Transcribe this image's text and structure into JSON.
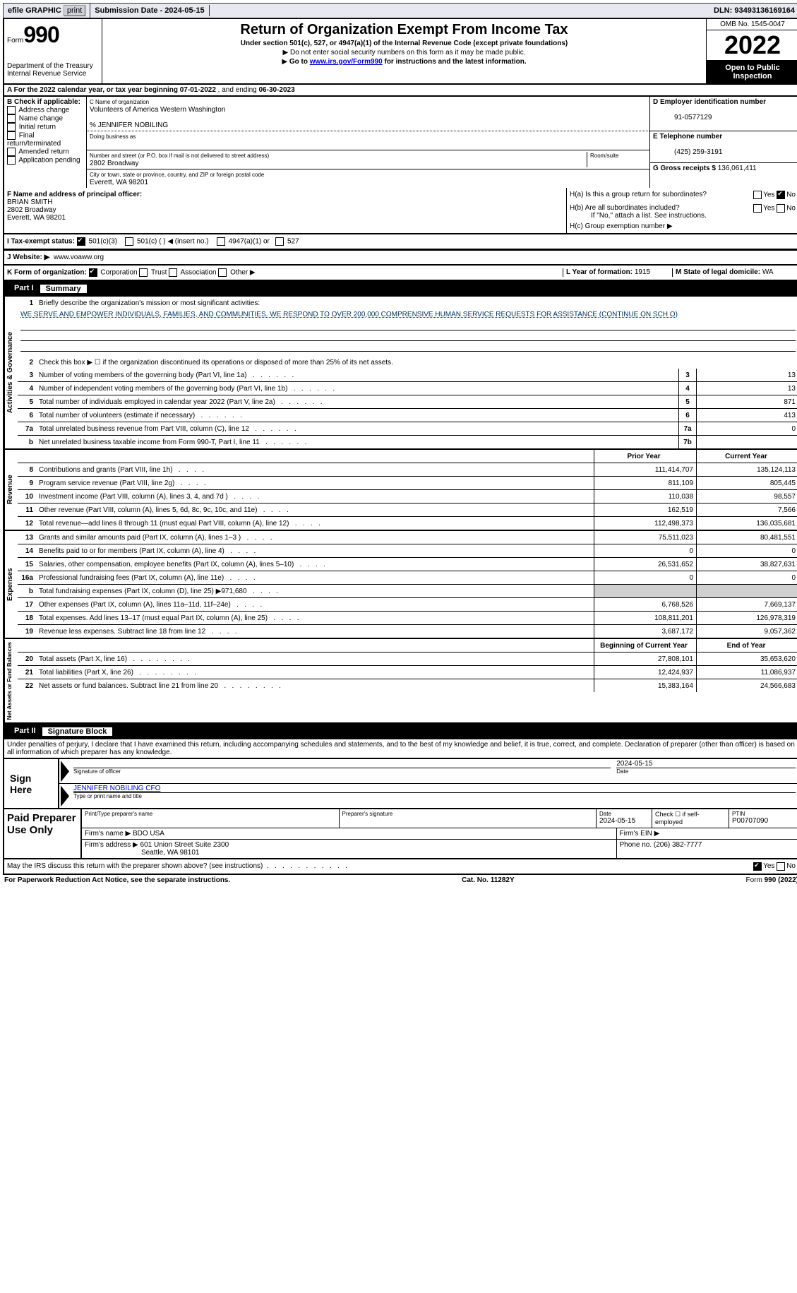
{
  "topbar": {
    "efile": "efile GRAPHIC",
    "print": "print",
    "submission_label": "Submission Date - ",
    "submission_date": "2024-05-15",
    "dln_label": "DLN: ",
    "dln": "93493136169164"
  },
  "header": {
    "form_label": "Form",
    "form_number": "990",
    "dept1": "Department of the Treasury",
    "dept2": "Internal Revenue Service",
    "title": "Return of Organization Exempt From Income Tax",
    "sub1": "Under section 501(c), 527, or 4947(a)(1) of the Internal Revenue Code (except private foundations)",
    "sub2": "Do not enter social security numbers on this form as it may be made public.",
    "sub3_pre": "Go to ",
    "sub3_link": "www.irs.gov/Form990",
    "sub3_post": " for instructions and the latest information.",
    "omb": "OMB No. 1545-0047",
    "year": "2022",
    "open": "Open to Public Inspection"
  },
  "section_a": {
    "text_pre": "A For the 2022 calendar year, or tax year beginning ",
    "begin": "07-01-2022",
    "mid": " , and ending ",
    "end": "06-30-2023"
  },
  "box_b": {
    "label": "B Check if applicable:",
    "items": [
      "Address change",
      "Name change",
      "Initial return",
      "Final return/terminated",
      "Amended return",
      "Application pending"
    ]
  },
  "box_c": {
    "name_label": "C Name of organization",
    "name": "Volunteers of America Western Washington",
    "care_of": "% JENNIFER NOBILING",
    "dba_label": "Doing business as",
    "street_label": "Number and street (or P.O. box if mail is not delivered to street address)",
    "room_label": "Room/suite",
    "street": "2802 Broadway",
    "city_label": "City or town, state or province, country, and ZIP or foreign postal code",
    "city": "Everett, WA  98201"
  },
  "box_d": {
    "ein_label": "D Employer identification number",
    "ein": "91-0577129",
    "phone_label": "E Telephone number",
    "phone": "(425) 259-3191",
    "gross_label": "G Gross receipts $ ",
    "gross": "136,061,411"
  },
  "box_f": {
    "label": "F Name and address of principal officer:",
    "name": "BRIAN SMITH",
    "addr1": "2802 Broadway",
    "addr2": "Everett, WA  98201"
  },
  "box_h": {
    "ha": "H(a)  Is this a group return for subordinates?",
    "hb": "H(b)  Are all subordinates included?",
    "hb_note": "If \"No,\" attach a list. See instructions.",
    "hc": "H(c)  Group exemption number ▶",
    "yes": "Yes",
    "no": "No"
  },
  "box_i": {
    "label": "I  Tax-exempt status:",
    "opt1": "501(c)(3)",
    "opt2": "501(c) (  ) ◀ (insert no.)",
    "opt3": "4947(a)(1) or",
    "opt4": "527"
  },
  "box_j": {
    "label": "J  Website: ▶",
    "value": "www.voaww.org"
  },
  "box_k": {
    "label": "K Form of organization:",
    "opts": [
      "Corporation",
      "Trust",
      "Association",
      "Other ▶"
    ],
    "l_label": "L Year of formation: ",
    "l_val": "1915",
    "m_label": "M State of legal domicile: ",
    "m_val": "WA"
  },
  "part1": {
    "label": "Part I",
    "title": "Summary",
    "q1": "Briefly describe the organization's mission or most significant activities:",
    "mission": "WE SERVE AND EMPOWER INDIVIDUALS, FAMILIES, AND COMMUNITIES. WE RESPOND TO OVER 200,000 COMPRENSIVE HUMAN SERVICE REQUESTS FOR ASSISTANCE (CONTINUE ON SCH O)",
    "q2": "Check this box ▶ ☐ if the organization discontinued its operations or disposed of more than 25% of its net assets.",
    "prior_head": "Prior Year",
    "curr_head": "Current Year",
    "beg_head": "Beginning of Current Year",
    "end_head": "End of Year",
    "lines_gov": [
      {
        "n": "3",
        "label": "Number of voting members of the governing body (Part VI, line 1a)",
        "box": "3",
        "val": "13"
      },
      {
        "n": "4",
        "label": "Number of independent voting members of the governing body (Part VI, line 1b)",
        "box": "4",
        "val": "13"
      },
      {
        "n": "5",
        "label": "Total number of individuals employed in calendar year 2022 (Part V, line 2a)",
        "box": "5",
        "val": "871"
      },
      {
        "n": "6",
        "label": "Total number of volunteers (estimate if necessary)",
        "box": "6",
        "val": "413"
      },
      {
        "n": "7a",
        "label": "Total unrelated business revenue from Part VIII, column (C), line 12",
        "box": "7a",
        "val": "0"
      },
      {
        "n": "b",
        "label": "Net unrelated business taxable income from Form 990-T, Part I, line 11",
        "box": "7b",
        "val": ""
      }
    ],
    "lines_rev": [
      {
        "n": "8",
        "label": "Contributions and grants (Part VIII, line 1h)",
        "prior": "111,414,707",
        "curr": "135,124,113"
      },
      {
        "n": "9",
        "label": "Program service revenue (Part VIII, line 2g)",
        "prior": "811,109",
        "curr": "805,445"
      },
      {
        "n": "10",
        "label": "Investment income (Part VIII, column (A), lines 3, 4, and 7d )",
        "prior": "110,038",
        "curr": "98,557"
      },
      {
        "n": "11",
        "label": "Other revenue (Part VIII, column (A), lines 5, 6d, 8c, 9c, 10c, and 11e)",
        "prior": "162,519",
        "curr": "7,566"
      },
      {
        "n": "12",
        "label": "Total revenue—add lines 8 through 11 (must equal Part VIII, column (A), line 12)",
        "prior": "112,498,373",
        "curr": "136,035,681"
      }
    ],
    "lines_exp": [
      {
        "n": "13",
        "label": "Grants and similar amounts paid (Part IX, column (A), lines 1–3 )",
        "prior": "75,511,023",
        "curr": "80,481,551"
      },
      {
        "n": "14",
        "label": "Benefits paid to or for members (Part IX, column (A), line 4)",
        "prior": "0",
        "curr": "0"
      },
      {
        "n": "15",
        "label": "Salaries, other compensation, employee benefits (Part IX, column (A), lines 5–10)",
        "prior": "26,531,652",
        "curr": "38,827,631"
      },
      {
        "n": "16a",
        "label": "Professional fundraising fees (Part IX, column (A), line 11e)",
        "prior": "0",
        "curr": "0"
      },
      {
        "n": "b",
        "label": "Total fundraising expenses (Part IX, column (D), line 25) ▶971,680",
        "prior": "",
        "curr": "",
        "shade": true
      },
      {
        "n": "17",
        "label": "Other expenses (Part IX, column (A), lines 11a–11d, 11f–24e)",
        "prior": "6,768,526",
        "curr": "7,669,137"
      },
      {
        "n": "18",
        "label": "Total expenses. Add lines 13–17 (must equal Part IX, column (A), line 25)",
        "prior": "108,811,201",
        "curr": "126,978,319"
      },
      {
        "n": "19",
        "label": "Revenue less expenses. Subtract line 18 from line 12",
        "prior": "3,687,172",
        "curr": "9,057,362"
      }
    ],
    "lines_net": [
      {
        "n": "20",
        "label": "Total assets (Part X, line 16)",
        "prior": "27,808,101",
        "curr": "35,653,620"
      },
      {
        "n": "21",
        "label": "Total liabilities (Part X, line 26)",
        "prior": "12,424,937",
        "curr": "11,086,937"
      },
      {
        "n": "22",
        "label": "Net assets or fund balances. Subtract line 21 from line 20",
        "prior": "15,383,164",
        "curr": "24,566,683"
      }
    ],
    "vlabels": [
      "Activities & Governance",
      "Revenue",
      "Expenses",
      "Net Assets or Fund Balances"
    ]
  },
  "part2": {
    "label": "Part II",
    "title": "Signature Block",
    "declaration": "Under penalties of perjury, I declare that I have examined this return, including accompanying schedules and statements, and to the best of my knowledge and belief, it is true, correct, and complete. Declaration of preparer (other than officer) is based on all information of which preparer has any knowledge.",
    "sign_here": "Sign Here",
    "sig_officer": "Signature of officer",
    "sig_date": "2024-05-15",
    "date_label": "Date",
    "officer_name": "JENNIFER NOBILING CFO",
    "type_name": "Type or print name and title",
    "paid_label": "Paid Preparer Use Only",
    "prep_name_label": "Print/Type preparer's name",
    "prep_sig_label": "Preparer's signature",
    "prep_date_label": "Date",
    "prep_date": "2024-05-15",
    "check_if": "Check ☐ if self-employed",
    "ptin_label": "PTIN",
    "ptin": "P00707090",
    "firm_name_label": "Firm's name   ▶",
    "firm_name": "BDO USA",
    "firm_ein_label": "Firm's EIN ▶",
    "firm_addr_label": "Firm's address ▶",
    "firm_addr1": "601 Union Street Suite 2300",
    "firm_addr2": "Seattle, WA  98101",
    "phone_label": "Phone no. ",
    "phone": "(206) 382-7777",
    "discuss": "May the IRS discuss this return with the preparer shown above? (see instructions)",
    "yes": "Yes",
    "no": "No"
  },
  "footer": {
    "paperwork": "For Paperwork Reduction Act Notice, see the separate instructions.",
    "cat": "Cat. No. 11282Y",
    "form": "Form 990 (2022)"
  }
}
